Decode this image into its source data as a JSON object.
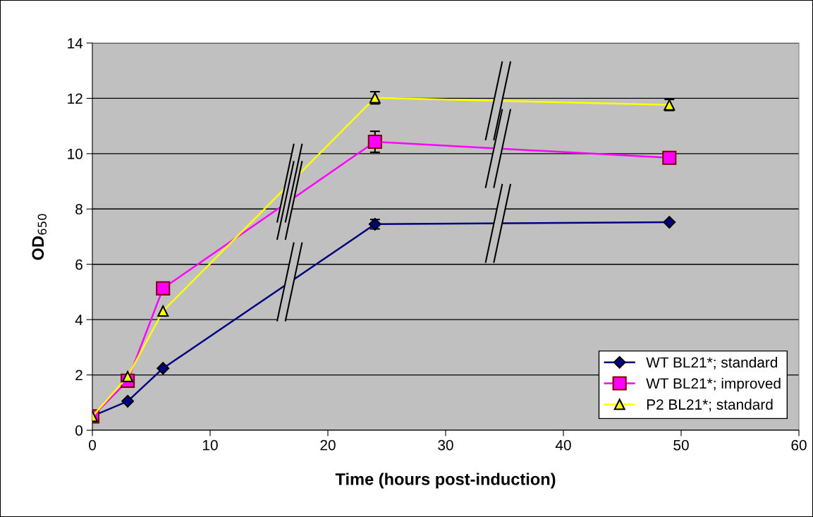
{
  "chart_data": {
    "type": "line",
    "xlabel": "Time (hours post-induction)",
    "ylabel": "OD$_{650}$",
    "x": [
      0,
      3,
      6,
      24,
      49
    ],
    "xlim": [
      0,
      60
    ],
    "xticks": [
      0,
      10,
      20,
      30,
      40,
      50,
      60
    ],
    "ylim": [
      0,
      14
    ],
    "yticks": [
      0,
      2,
      4,
      6,
      8,
      10,
      12,
      14
    ],
    "grid": "y",
    "legend": "bottom right",
    "line_style": "solid",
    "series": [
      {
        "name": "WT BL21*; standard",
        "color": "#000080",
        "marker": "diamond",
        "values": [
          0.51,
          1.05,
          2.24,
          7.45,
          7.52
        ],
        "errors": [
          null,
          null,
          null,
          0.17,
          null
        ]
      },
      {
        "name": "WT BL21*; improved",
        "color": "#ff00ff",
        "marker": "square",
        "values": [
          0.5,
          1.79,
          5.13,
          10.43,
          9.85
        ],
        "errors": [
          null,
          null,
          null,
          0.38,
          null
        ]
      },
      {
        "name": "P2 BL21*; standard",
        "color": "#ffff00",
        "marker": "triangle",
        "values": [
          0.5,
          1.94,
          4.31,
          12.02,
          11.76
        ],
        "errors": [
          null,
          null,
          null,
          0.22,
          0.2
        ]
      }
    ]
  }
}
